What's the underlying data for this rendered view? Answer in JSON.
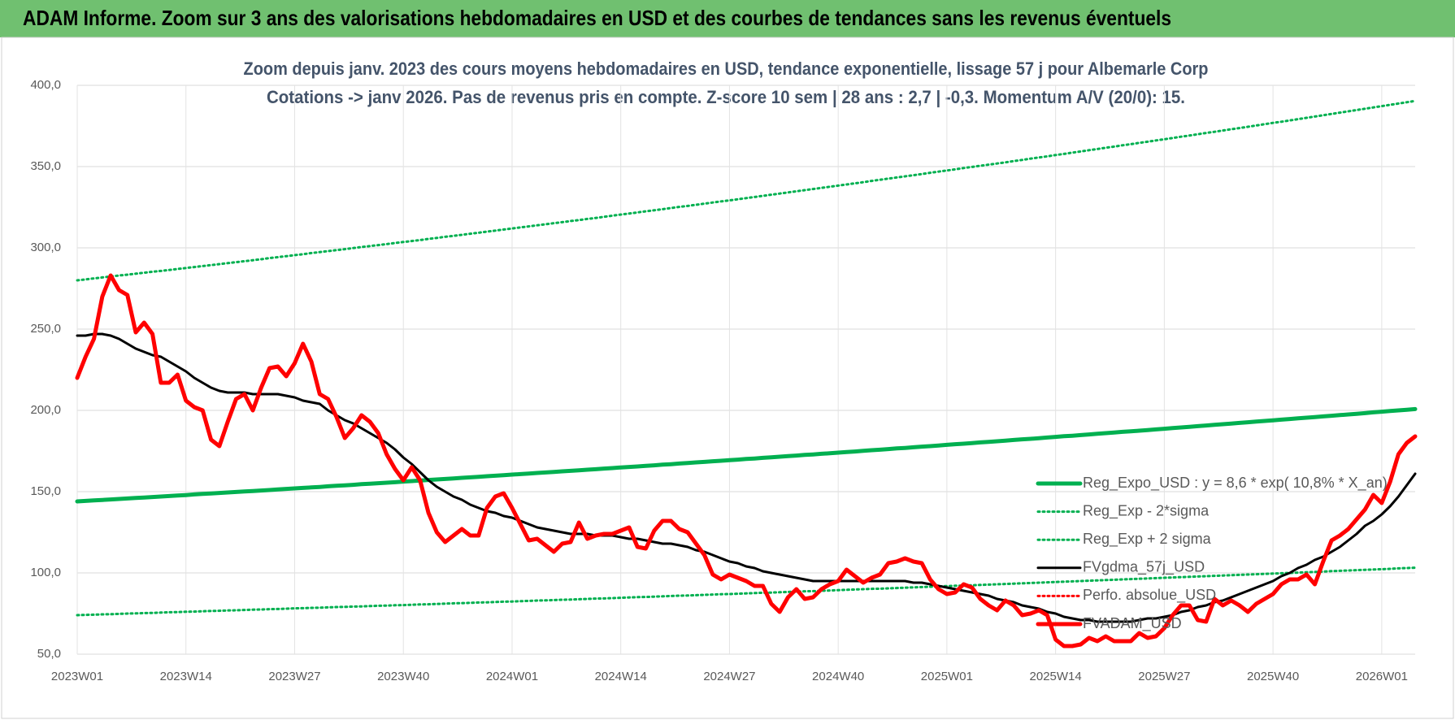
{
  "header": "ADAM Informe. Zoom sur 3 ans des valorisations hebdomadaires en USD et des courbes de tendances sans les revenus éventuels",
  "chart_data": {
    "type": "line",
    "title": [
      "Zoom depuis janv. 2023 des cours moyens hebdomadaires en USD, tendance exponentielle, lissage 57 j pour Albemarle Corp",
      "Cotations -> janv 2026. Pas de revenus pris en compte. Z-score 10 sem | 28 ans : 2,7 | -0,3. Momentum A/V (20/0): 15."
    ],
    "categories": [
      "2023W01",
      null,
      null,
      null,
      null,
      null,
      null,
      null,
      null,
      null,
      null,
      null,
      null,
      "2023W14",
      null,
      null,
      null,
      null,
      null,
      null,
      null,
      null,
      null,
      null,
      null,
      null,
      "2023W27",
      null,
      null,
      null,
      null,
      null,
      null,
      null,
      null,
      null,
      null,
      null,
      null,
      "2023W40",
      null,
      null,
      null,
      null,
      null,
      null,
      null,
      null,
      null,
      null,
      null,
      null,
      "2024W01",
      null,
      null,
      null,
      null,
      null,
      null,
      null,
      null,
      null,
      null,
      null,
      null,
      "2024W14",
      null,
      null,
      null,
      null,
      null,
      null,
      null,
      null,
      null,
      null,
      null,
      null,
      "2024W27",
      null,
      null,
      null,
      null,
      null,
      null,
      null,
      null,
      null,
      null,
      null,
      null,
      "2024W40",
      null,
      null,
      null,
      null,
      null,
      null,
      null,
      null,
      null,
      null,
      null,
      null,
      "2025W01",
      null,
      null,
      null,
      null,
      null,
      null,
      null,
      null,
      null,
      null,
      null,
      null,
      "2025W14",
      null,
      null,
      null,
      null,
      null,
      null,
      null,
      null,
      null,
      null,
      null,
      null,
      "2025W27",
      null,
      null,
      null,
      null,
      null,
      null,
      null,
      null,
      null,
      null,
      null,
      null,
      "2025W40",
      null,
      null,
      null,
      null,
      null,
      null,
      null,
      null,
      null,
      null,
      null,
      null,
      "2026W01",
      null,
      null,
      null,
      null
    ],
    "ylim": [
      50,
      400
    ],
    "yticks": [
      {
        "value": 50,
        "label": "50,0"
      },
      {
        "value": 100,
        "label": "100,0"
      },
      {
        "value": 150,
        "label": "150,0"
      },
      {
        "value": 200,
        "label": "200,0"
      },
      {
        "value": 250,
        "label": "250,0"
      },
      {
        "value": 300,
        "label": "300,0"
      },
      {
        "value": 350,
        "label": "350,0"
      },
      {
        "value": 400,
        "label": "400,0"
      }
    ],
    "grid": true,
    "legend": "right",
    "series": [
      {
        "name": "Reg_Expo_USD : y = 8,6 * exp( 10,8% *  X_an)",
        "color": "#00b050",
        "style": "thick",
        "values": [
          144.0,
          144.3,
          144.6,
          144.9,
          145.2,
          145.5,
          145.8,
          146.1,
          146.4,
          146.7,
          147.0,
          147.3,
          147.6,
          147.9,
          148.3,
          148.6,
          148.9,
          149.2,
          149.5,
          149.8,
          150.1,
          150.4,
          150.7,
          151.0,
          151.4,
          151.7,
          152.0,
          152.3,
          152.6,
          152.9,
          153.3,
          153.6,
          153.9,
          154.2,
          154.6,
          154.9,
          155.2,
          155.5,
          155.8,
          156.2,
          156.5,
          156.8,
          157.2,
          157.5,
          157.8,
          158.1,
          158.5,
          158.8,
          159.1,
          159.5,
          159.8,
          160.1,
          160.5,
          160.8,
          161.1,
          161.5,
          161.8,
          162.1,
          162.5,
          162.8,
          163.1,
          163.5,
          163.8,
          164.2,
          164.5,
          164.9,
          165.2,
          165.5,
          165.9,
          166.2,
          166.6,
          166.9,
          167.3,
          167.6,
          168.0,
          168.3,
          168.7,
          169.0,
          169.4,
          169.7,
          170.1,
          170.4,
          170.8,
          171.1,
          171.5,
          171.9,
          172.2,
          172.6,
          172.9,
          173.3,
          173.6,
          174.0,
          174.4,
          174.7,
          175.1,
          175.5,
          175.8,
          176.2,
          176.6,
          176.9,
          177.3,
          177.7,
          178.0,
          178.4,
          178.8,
          179.2,
          179.5,
          179.9,
          180.3,
          180.6,
          181.0,
          181.4,
          181.8,
          182.2,
          182.5,
          182.9,
          183.3,
          183.7,
          184.1,
          184.4,
          184.8,
          185.2,
          185.6,
          186.0,
          186.4,
          186.8,
          187.1,
          187.5,
          187.9,
          188.3,
          188.7,
          189.1,
          189.5,
          189.9,
          190.3,
          190.7,
          191.1,
          191.5,
          191.9,
          192.3,
          192.7,
          193.1,
          193.5,
          193.9,
          194.3,
          194.7,
          195.1,
          195.5,
          195.9,
          196.3,
          196.7,
          197.1,
          197.5,
          197.9,
          198.3,
          198.8,
          199.2,
          199.6,
          200.0,
          200.4,
          200.8
        ]
      },
      {
        "name": "Reg_Exp - 2*sigma",
        "color": "#00b050",
        "style": "dotted",
        "values": [
          74.0,
          74.2,
          74.3,
          74.5,
          74.6,
          74.8,
          75.0,
          75.1,
          75.3,
          75.4,
          75.6,
          75.8,
          75.9,
          76.1,
          76.2,
          76.4,
          76.6,
          76.7,
          76.9,
          77.0,
          77.2,
          77.4,
          77.5,
          77.7,
          77.8,
          78.0,
          78.2,
          78.3,
          78.5,
          78.6,
          78.8,
          79.0,
          79.1,
          79.3,
          79.4,
          79.6,
          79.8,
          79.9,
          80.1,
          80.2,
          80.4,
          80.6,
          80.7,
          80.9,
          81.1,
          81.3,
          81.4,
          81.6,
          81.8,
          81.9,
          82.1,
          82.3,
          82.4,
          82.6,
          82.8,
          83.0,
          83.1,
          83.3,
          83.5,
          83.6,
          83.8,
          84.0,
          84.2,
          84.3,
          84.5,
          84.7,
          84.9,
          85.1,
          85.2,
          85.4,
          85.6,
          85.8,
          86.0,
          86.1,
          86.3,
          86.5,
          86.7,
          86.9,
          87.0,
          87.2,
          87.4,
          87.6,
          87.8,
          87.9,
          88.1,
          88.3,
          88.5,
          88.7,
          88.8,
          89.0,
          89.2,
          89.4,
          89.6,
          89.8,
          90.0,
          90.2,
          90.3,
          90.5,
          90.7,
          90.9,
          91.1,
          91.3,
          91.5,
          91.7,
          91.9,
          92.1,
          92.2,
          92.4,
          92.6,
          92.8,
          93.0,
          93.2,
          93.4,
          93.6,
          93.8,
          94.0,
          94.2,
          94.4,
          94.6,
          94.8,
          95.0,
          95.2,
          95.4,
          95.6,
          95.8,
          96.0,
          96.2,
          96.4,
          96.6,
          96.8,
          97.0,
          97.2,
          97.4,
          97.6,
          97.8,
          98.0,
          98.2,
          98.4,
          98.6,
          98.8,
          99.0,
          99.2,
          99.4,
          99.6,
          99.8,
          100.0,
          100.2,
          100.4,
          100.6,
          100.8,
          101.1,
          101.3,
          101.5,
          101.7,
          101.9,
          102.1,
          102.3,
          102.5,
          102.8,
          103.0,
          103.2
        ]
      },
      {
        "name": "Reg_Exp + 2 sigma",
        "color": "#00b050",
        "style": "dotted",
        "values": [
          280.0,
          280.6,
          281.2,
          281.8,
          282.4,
          283.0,
          283.5,
          284.1,
          284.7,
          285.3,
          285.8,
          286.4,
          287.0,
          287.6,
          288.2,
          288.8,
          289.4,
          290.0,
          290.6,
          291.2,
          291.8,
          292.4,
          293.0,
          293.7,
          294.3,
          294.9,
          295.5,
          296.1,
          296.8,
          297.4,
          298.0,
          298.6,
          299.2,
          299.9,
          300.5,
          301.1,
          301.7,
          302.3,
          303.0,
          303.6,
          304.2,
          304.8,
          305.5,
          306.1,
          306.8,
          307.4,
          308.0,
          308.7,
          309.3,
          310.0,
          310.6,
          311.3,
          311.9,
          312.6,
          313.2,
          313.9,
          314.5,
          315.2,
          315.8,
          316.5,
          317.1,
          317.8,
          318.4,
          319.1,
          319.8,
          320.5,
          321.1,
          321.8,
          322.5,
          323.1,
          323.8,
          324.5,
          325.2,
          325.8,
          326.5,
          327.2,
          327.9,
          328.6,
          329.2,
          329.9,
          330.6,
          331.3,
          332.0,
          332.7,
          333.4,
          334.1,
          334.8,
          335.5,
          336.2,
          336.9,
          337.6,
          338.3,
          339.0,
          339.7,
          340.4,
          341.2,
          341.9,
          342.6,
          343.3,
          344.0,
          344.7,
          345.4,
          346.2,
          346.9,
          347.6,
          348.3,
          349.1,
          349.8,
          350.5,
          351.2,
          351.9,
          352.6,
          353.4,
          354.1,
          354.9,
          355.6,
          356.3,
          357.1,
          357.8,
          358.6,
          359.3,
          360.1,
          360.8,
          361.6,
          362.3,
          363.1,
          363.8,
          364.6,
          365.3,
          366.1,
          366.8,
          367.6,
          368.4,
          369.1,
          369.9,
          370.7,
          371.4,
          372.2,
          373.0,
          373.7,
          374.5,
          375.3,
          376.1,
          376.9,
          377.6,
          378.4,
          379.2,
          380.0,
          380.8,
          381.6,
          382.4,
          383.2,
          384.0,
          384.8,
          385.6,
          386.4,
          387.2,
          388.0,
          388.8,
          389.6,
          390.4
        ]
      },
      {
        "name": "FVgdma_57j_USD",
        "color": "#000000",
        "style": "solid",
        "values": [
          246,
          246,
          247,
          247,
          246,
          244,
          241,
          238,
          236,
          234,
          233,
          230,
          227,
          224,
          220,
          217,
          214,
          212,
          211,
          211,
          211,
          210,
          210,
          210,
          210,
          209,
          208,
          206,
          205,
          204,
          200,
          197,
          194,
          192,
          189,
          186,
          183,
          180,
          176,
          171,
          167,
          162,
          157,
          153,
          150,
          147,
          145,
          142,
          140,
          138,
          137,
          135,
          134,
          132,
          130,
          128,
          127,
          126,
          125,
          124,
          124,
          124,
          123,
          123,
          123,
          122,
          121,
          121,
          120,
          119,
          118,
          118,
          117,
          116,
          114,
          113,
          111,
          109,
          107,
          106,
          104,
          103,
          101,
          100,
          99,
          98,
          97,
          96,
          95,
          95,
          95,
          95,
          95,
          95,
          95,
          95,
          95,
          95,
          95,
          95,
          94,
          94,
          93,
          92,
          91,
          90,
          89,
          88,
          87,
          86,
          84,
          83,
          82,
          80,
          79,
          78,
          76,
          75,
          73,
          72,
          71,
          71,
          70,
          70,
          70,
          70,
          70,
          71,
          72,
          72,
          73,
          74,
          76,
          77,
          79,
          80,
          82,
          83,
          85,
          87,
          89,
          91,
          93,
          95,
          98,
          100,
          103,
          105,
          108,
          110,
          113,
          116,
          120,
          124,
          129,
          132,
          136,
          141,
          147,
          154,
          161
        ]
      },
      {
        "name": "Perfo. absolue_USD",
        "color": "#ff0000",
        "style": "dotted",
        "values": [
          null,
          null,
          null,
          null,
          null,
          null,
          null,
          null,
          null,
          null,
          null,
          null,
          null,
          null,
          null,
          null,
          null,
          null,
          null,
          null,
          null,
          null,
          null,
          null,
          null,
          null,
          null,
          null,
          null,
          null,
          null,
          null,
          null,
          null,
          null,
          null,
          null,
          null,
          null,
          null,
          null,
          null,
          null,
          null,
          null,
          null,
          null,
          null,
          null,
          null,
          null,
          null,
          null,
          null,
          null,
          null,
          null,
          null,
          null,
          null,
          null,
          null,
          null,
          null,
          null,
          null,
          null,
          null,
          null,
          null,
          null,
          null,
          null,
          null,
          null,
          null,
          null,
          null,
          null,
          null,
          null,
          null,
          null,
          null,
          null,
          null,
          null,
          null,
          null,
          null,
          null,
          null,
          null,
          null,
          null,
          null,
          null,
          null,
          null,
          null,
          null,
          null,
          null,
          null,
          null,
          null,
          null,
          null,
          null,
          null,
          null,
          null,
          null,
          null,
          null,
          null,
          null,
          null,
          null,
          null,
          null,
          null,
          null,
          null,
          null,
          null,
          null,
          null,
          null,
          null,
          null,
          null,
          null,
          null,
          null,
          null,
          null,
          null,
          null,
          null,
          null,
          null,
          null,
          null,
          null,
          null,
          null,
          null,
          null,
          null,
          null,
          null,
          null,
          null,
          null,
          null,
          null,
          null,
          null,
          null,
          null
        ]
      },
      {
        "name": "FVADAM_USD",
        "color": "#ff0000",
        "style": "thick",
        "values": [
          220,
          233,
          244,
          270,
          283,
          274,
          271,
          248,
          254,
          247,
          217,
          217,
          222,
          206,
          202,
          200,
          182,
          178,
          193,
          207,
          210,
          200,
          214,
          226,
          227,
          221,
          229,
          241,
          230,
          210,
          207,
          196,
          183,
          189,
          197,
          193,
          186,
          173,
          164,
          157,
          165,
          157,
          137,
          125,
          119,
          123,
          127,
          123,
          123,
          140,
          147,
          149,
          140,
          130,
          120,
          121,
          117,
          113,
          118,
          119,
          131,
          121,
          123,
          124,
          124,
          126,
          128,
          116,
          115,
          126,
          132,
          132,
          127,
          125,
          118,
          111,
          99,
          96,
          99,
          97,
          95,
          92,
          92,
          81,
          76,
          85,
          90,
          84,
          85,
          90,
          93,
          95,
          102,
          98,
          94,
          97,
          99,
          106,
          107,
          109,
          107,
          106,
          96,
          90,
          87,
          88,
          93,
          91,
          84,
          80,
          77,
          83,
          80,
          74,
          75,
          77,
          74,
          59,
          55,
          55,
          56,
          60,
          58,
          61,
          58,
          58,
          58,
          63,
          60,
          61,
          66,
          74,
          80,
          80,
          71,
          70,
          84,
          80,
          83,
          80,
          76,
          81,
          84,
          87,
          93,
          96,
          96,
          99,
          93,
          107,
          120,
          123,
          127,
          133,
          139,
          148,
          143,
          156,
          173,
          180,
          184
        ]
      }
    ]
  }
}
